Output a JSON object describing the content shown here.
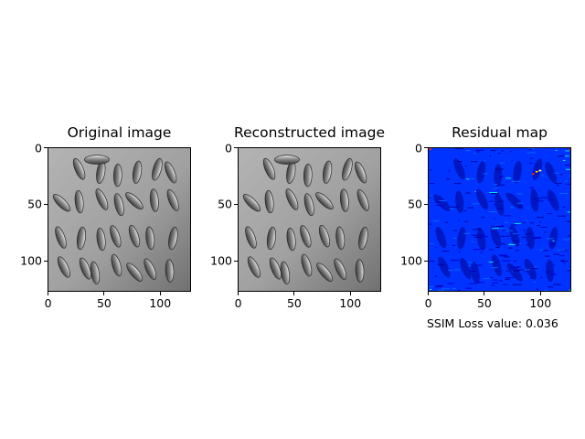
{
  "chart_data": [
    {
      "type": "image",
      "title": "Original image",
      "colormap": "gray",
      "xlim": [
        0,
        128
      ],
      "ylim": [
        128,
        0
      ],
      "x_ticks": [
        "0",
        "50",
        "100"
      ],
      "y_ticks": [
        "0",
        "50",
        "100"
      ]
    },
    {
      "type": "image",
      "title": "Reconstructed image",
      "colormap": "gray",
      "xlim": [
        0,
        128
      ],
      "ylim": [
        128,
        0
      ],
      "x_ticks": [
        "0",
        "50",
        "100"
      ],
      "y_ticks": [
        "0",
        "50",
        "100"
      ]
    },
    {
      "type": "heatmap",
      "title": "Residual map",
      "colormap": "jet",
      "xlim": [
        0,
        128
      ],
      "ylim": [
        128,
        0
      ],
      "x_ticks": [
        "0",
        "50",
        "100"
      ],
      "y_ticks": [
        "0",
        "50",
        "100"
      ],
      "annotation": "SSIM Loss value: 0.036"
    }
  ],
  "colors": {
    "residual_dark": "#00008f",
    "residual_mid": "#0033ff",
    "residual_hot": "#00e5ff",
    "gray_bg_light": "#b4b4b4",
    "gray_bg_dark": "#707070"
  }
}
